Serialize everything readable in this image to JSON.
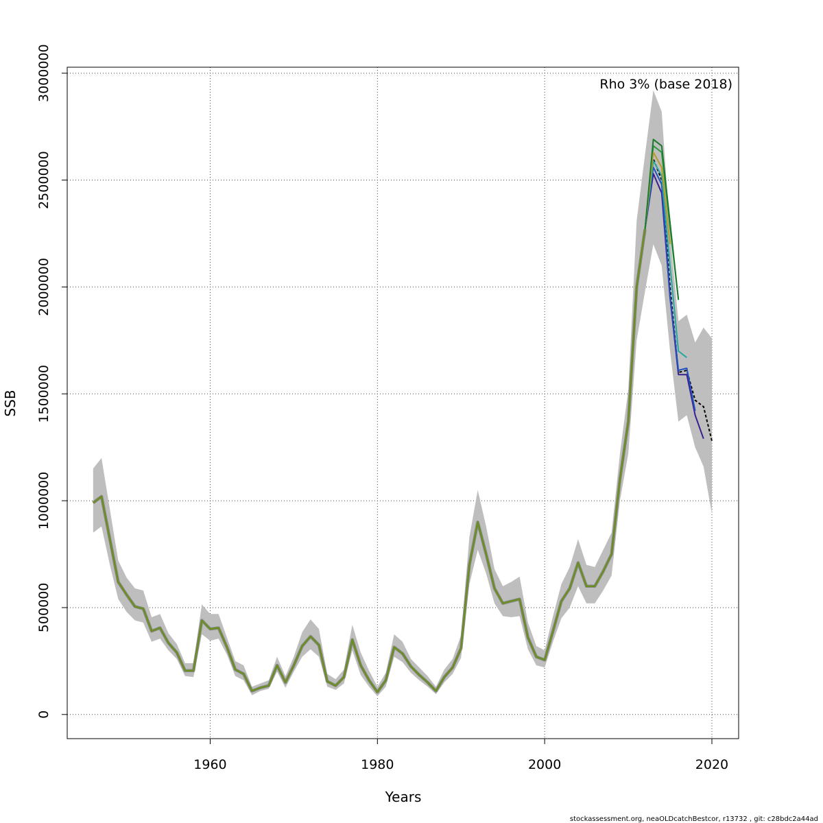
{
  "chart_data": {
    "type": "line",
    "xlabel": "Years",
    "ylabel": "SSB",
    "annotation": "Rho 3% (base 2018)",
    "footer": "stockassessment.org, neaOLDcatchBestcor, r13732 , git: c28bdc2a44ad",
    "xlim": [
      1942.9,
      2023.2
    ],
    "ylim": [
      -113000,
      3028000
    ],
    "x_ticks": [
      1960,
      1980,
      2000,
      2020
    ],
    "y_ticks": [
      0,
      500000,
      1000000,
      1500000,
      2000000,
      2500000,
      3000000
    ],
    "x_tick_labels": [
      "1960",
      "1980",
      "2000",
      "2020"
    ],
    "y_tick_labels": [
      "0",
      "500000",
      "1000000",
      "1500000",
      "2000000",
      "2500000",
      "3000000"
    ],
    "grid": true,
    "colors": {
      "band": "#bebebe",
      "main": "#6b8e23",
      "base": "#000000",
      "peel1": "#3a1f8e",
      "peel2": "#2251c0",
      "peel3": "#2aa6a0",
      "peel4": "#2e9a3c",
      "peel5": "#b89a2a",
      "peel6": "#1a7a2e"
    },
    "confidence_band": {
      "x": [
        1946,
        1947,
        1948,
        1949,
        1950,
        1951,
        1952,
        1953,
        1954,
        1955,
        1956,
        1957,
        1958,
        1959,
        1960,
        1961,
        1962,
        1963,
        1964,
        1965,
        1966,
        1967,
        1968,
        1969,
        1970,
        1971,
        1972,
        1973,
        1974,
        1975,
        1976,
        1977,
        1978,
        1979,
        1980,
        1981,
        1982,
        1983,
        1984,
        1985,
        1986,
        1987,
        1988,
        1989,
        1990,
        1991,
        1992,
        1993,
        1994,
        1995,
        1996,
        1997,
        1998,
        1999,
        2000,
        2001,
        2002,
        2003,
        2004,
        2005,
        2006,
        2007,
        2008,
        2009,
        2010,
        2011,
        2012,
        2013,
        2014,
        2015,
        2016,
        2017,
        2018,
        2019,
        2020
      ],
      "lower": [
        850000,
        880000,
        700000,
        540000,
        480000,
        440000,
        430000,
        340000,
        355000,
        300000,
        260000,
        180000,
        175000,
        375000,
        345000,
        355000,
        280000,
        180000,
        160000,
        90000,
        110000,
        120000,
        200000,
        125000,
        200000,
        270000,
        305000,
        270000,
        130000,
        115000,
        145000,
        300000,
        185000,
        130000,
        85000,
        130000,
        270000,
        245000,
        195000,
        160000,
        130000,
        95000,
        150000,
        190000,
        265000,
        610000,
        770000,
        660000,
        520000,
        460000,
        455000,
        460000,
        305000,
        230000,
        220000,
        340000,
        450000,
        500000,
        600000,
        520000,
        520000,
        580000,
        650000,
        1000000,
        1220000,
        1750000,
        1980000,
        2200000,
        2100000,
        1700000,
        1370000,
        1400000,
        1250000,
        1160000,
        940000
      ],
      "upper": [
        1150000,
        1200000,
        960000,
        720000,
        640000,
        590000,
        580000,
        455000,
        470000,
        380000,
        330000,
        240000,
        240000,
        515000,
        470000,
        470000,
        360000,
        250000,
        230000,
        130000,
        145000,
        160000,
        270000,
        180000,
        270000,
        385000,
        445000,
        400000,
        190000,
        165000,
        210000,
        420000,
        290000,
        205000,
        130000,
        195000,
        375000,
        340000,
        260000,
        220000,
        180000,
        130000,
        210000,
        260000,
        370000,
        830000,
        1050000,
        880000,
        680000,
        600000,
        620000,
        645000,
        430000,
        320000,
        300000,
        460000,
        610000,
        690000,
        820000,
        700000,
        690000,
        770000,
        850000,
        1220000,
        1520000,
        2310000,
        2620000,
        2920000,
        2820000,
        2250000,
        1840000,
        1870000,
        1740000,
        1810000,
        1760000
      ]
    },
    "series": [
      {
        "role": "estimate",
        "x": [
          1946,
          1947,
          1948,
          1949,
          1950,
          1951,
          1952,
          1953,
          1954,
          1955,
          1956,
          1957,
          1958,
          1959,
          1960,
          1961,
          1962,
          1963,
          1964,
          1965,
          1966,
          1967,
          1968,
          1969,
          1970,
          1971,
          1972,
          1973,
          1974,
          1975,
          1976,
          1977,
          1978,
          1979,
          1980,
          1981,
          1982,
          1983,
          1984,
          1985,
          1986,
          1987,
          1988,
          1989,
          1990,
          1991,
          1992,
          1993,
          1994,
          1995,
          1996,
          1997,
          1998,
          1999,
          2000,
          2001,
          2002,
          2003,
          2004,
          2005,
          2006,
          2007,
          2008,
          2009,
          2010,
          2011,
          2012
        ],
        "values": [
          990000,
          1020000,
          820000,
          620000,
          560000,
          505000,
          495000,
          390000,
          405000,
          335000,
          290000,
          205000,
          205000,
          440000,
          400000,
          405000,
          315000,
          210000,
          190000,
          110000,
          125000,
          135000,
          230000,
          150000,
          230000,
          320000,
          365000,
          325000,
          155000,
          135000,
          175000,
          350000,
          230000,
          160000,
          105000,
          160000,
          315000,
          285000,
          225000,
          185000,
          150000,
          110000,
          175000,
          220000,
          310000,
          700000,
          900000,
          750000,
          590000,
          520000,
          530000,
          540000,
          360000,
          270000,
          255000,
          390000,
          530000,
          590000,
          710000,
          600000,
          600000,
          670000,
          750000,
          1100000,
          1370000,
          2000000,
          2270000
        ]
      },
      {
        "role": "base",
        "dashed": true,
        "x": [
          2012,
          2013,
          2014,
          2015,
          2016,
          2017,
          2018,
          2019,
          2020
        ],
        "values": [
          2270000,
          2600000,
          2500000,
          2000000,
          1600000,
          1610000,
          1470000,
          1440000,
          1280000
        ]
      },
      {
        "role": "peel",
        "color_key": "peel1",
        "x": [
          2012,
          2013,
          2014,
          2015,
          2016,
          2017,
          2018,
          2019
        ],
        "values": [
          2270000,
          2530000,
          2440000,
          1950000,
          1590000,
          1590000,
          1400000,
          1290000
        ]
      },
      {
        "role": "peel",
        "color_key": "peel2",
        "x": [
          2012,
          2013,
          2014,
          2015,
          2016,
          2017,
          2018
        ],
        "values": [
          2270000,
          2560000,
          2480000,
          1960000,
          1610000,
          1620000,
          1420000
        ]
      },
      {
        "role": "peel",
        "color_key": "peel3",
        "x": [
          2012,
          2013,
          2014,
          2015,
          2016,
          2017
        ],
        "values": [
          2270000,
          2590000,
          2520000,
          2100000,
          1700000,
          1670000
        ]
      },
      {
        "role": "peel",
        "color_key": "peel4",
        "x": [
          2012,
          2013,
          2014,
          2015,
          2016
        ],
        "values": [
          2270000,
          2660000,
          2630000,
          2280000,
          1940000
        ]
      },
      {
        "role": "peel",
        "color_key": "peel5",
        "x": [
          2012,
          2013,
          2014,
          2015
        ],
        "values": [
          2270000,
          2630000,
          2560000,
          2200000
        ]
      },
      {
        "role": "peel",
        "color_key": "peel6",
        "x": [
          2012,
          2013,
          2014,
          2015,
          2016
        ],
        "values": [
          2270000,
          2690000,
          2660000,
          2300000,
          1940000
        ]
      }
    ]
  }
}
